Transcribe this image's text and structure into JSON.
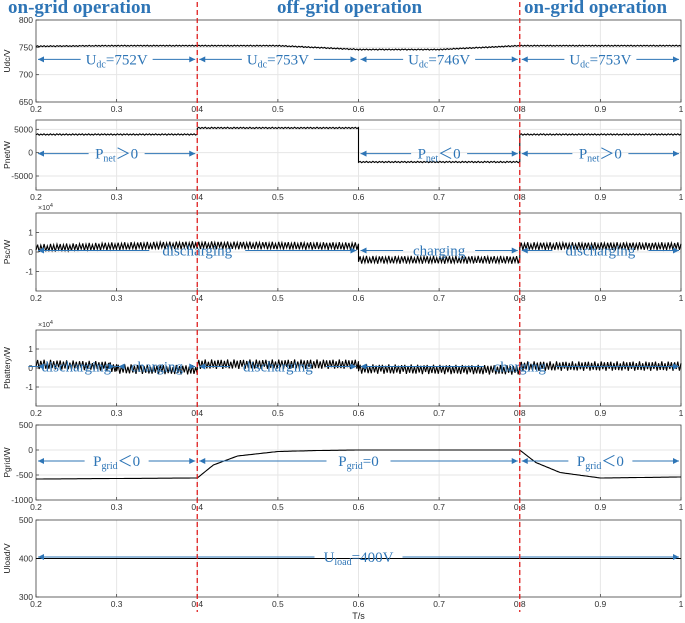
{
  "phases": [
    {
      "label": "on-grid operation",
      "x_range": [
        0.2,
        0.4
      ]
    },
    {
      "label": "off-grid operation",
      "x_range": [
        0.4,
        0.8
      ]
    },
    {
      "label": "on-grid operation",
      "x_range": [
        0.8,
        1.0
      ]
    }
  ],
  "colors": {
    "annotation": "#2e75b6",
    "mode_switch": "#e02020",
    "trace": "#000000",
    "grid": "#e6e6e6"
  },
  "chart_data": [
    {
      "type": "line",
      "ylabel": "Udc/V",
      "xlim": [
        0.2,
        1.0
      ],
      "ylim": [
        650,
        800
      ],
      "xticks": [
        0.2,
        0.3,
        0.4,
        0.5,
        0.6,
        0.7,
        0.8,
        0.9,
        1
      ],
      "yticks": [
        650,
        700,
        750,
        800
      ],
      "grid": true,
      "series": [
        {
          "x": [
            0.2,
            0.3,
            0.4,
            0.5,
            0.6,
            0.7,
            0.8,
            0.9,
            1.0
          ],
          "y": [
            752,
            753,
            753,
            753,
            746,
            746,
            753,
            753,
            753
          ],
          "ripple": 1
        }
      ],
      "annotations": [
        {
          "text": "U",
          "sub": "dc",
          "rest": "=752V",
          "x_range": [
            0.2,
            0.4
          ]
        },
        {
          "text": "U",
          "sub": "dc",
          "rest": "=753V",
          "x_range": [
            0.4,
            0.6
          ]
        },
        {
          "text": "U",
          "sub": "dc",
          "rest": "=746V",
          "x_range": [
            0.6,
            0.8
          ]
        },
        {
          "text": "U",
          "sub": "dc",
          "rest": "=753V",
          "x_range": [
            0.8,
            1.0
          ]
        }
      ]
    },
    {
      "type": "line",
      "ylabel": "Pnet/W",
      "xlim": [
        0.2,
        1.0
      ],
      "ylim": [
        -8000,
        7000
      ],
      "xticks": [
        0.2,
        0.3,
        0.4,
        0.5,
        0.6,
        0.7,
        0.8,
        0.9,
        1
      ],
      "yticks": [
        -5000,
        0,
        5000
      ],
      "grid": true,
      "series": [
        {
          "x": [
            0.2,
            0.4,
            0.4,
            0.6,
            0.6,
            0.8,
            0.8,
            1.0
          ],
          "y": [
            3900,
            3900,
            5300,
            5300,
            -2000,
            -2000,
            3900,
            3900
          ],
          "ripple": 150
        }
      ],
      "annotations": [
        {
          "text": "P",
          "sub": "net",
          "rest": "＞0",
          "x_range": [
            0.2,
            0.4
          ]
        },
        {
          "text": "P",
          "sub": "net",
          "rest": "＜0",
          "x_range": [
            0.6,
            0.8
          ]
        },
        {
          "text": "P",
          "sub": "net",
          "rest": "＞0",
          "x_range": [
            0.8,
            1.0
          ]
        }
      ]
    },
    {
      "type": "line",
      "ylabel": "Psc/W",
      "exponent": "×10",
      "exponent_power": "4",
      "xlim": [
        0.2,
        1.0
      ],
      "ylim": [
        -2,
        2
      ],
      "xticks": [
        0.2,
        0.3,
        0.4,
        0.5,
        0.6,
        0.7,
        0.8,
        0.9,
        1
      ],
      "yticks": [
        -1,
        0,
        1
      ],
      "grid": true,
      "series": [
        {
          "x": [
            0.2,
            0.3,
            0.4,
            0.6,
            0.6,
            0.8,
            0.8,
            1.0
          ],
          "y": [
            0.2,
            0.3,
            0.35,
            0.3,
            -0.4,
            -0.4,
            0.3,
            0.3
          ],
          "ripple": 0.2
        }
      ],
      "annotations": [
        {
          "text": "discharging",
          "x_range": [
            0.2,
            0.6
          ]
        },
        {
          "text": "charging",
          "x_range": [
            0.6,
            0.8
          ]
        },
        {
          "text": "discharging",
          "x_range": [
            0.8,
            1.0
          ]
        }
      ]
    },
    {
      "type": "line",
      "ylabel": "Pbattery/W",
      "exponent": "×10",
      "exponent_power": "4",
      "xlim": [
        0.2,
        1.0
      ],
      "ylim": [
        -2,
        2
      ],
      "xticks": [
        0.2,
        0.3,
        0.4,
        0.5,
        0.6,
        0.7,
        0.8,
        0.9,
        1
      ],
      "yticks": [
        -1,
        0,
        1
      ],
      "grid": true,
      "series": [
        {
          "x": [
            0.2,
            0.29,
            0.3,
            0.4,
            0.4,
            0.6,
            0.6,
            0.8,
            0.8,
            1.0
          ],
          "y": [
            0.2,
            0.1,
            -0.05,
            -0.1,
            0.2,
            0.2,
            -0.05,
            -0.1,
            0.1,
            0.1
          ],
          "ripple": 0.25
        }
      ],
      "annotations": [
        {
          "text": "discharging",
          "x_range": [
            0.2,
            0.3
          ]
        },
        {
          "text": "charging",
          "x_range": [
            0.3,
            0.4
          ]
        },
        {
          "text": "discharging",
          "x_range": [
            0.4,
            0.6
          ]
        },
        {
          "text": "charging",
          "x_range": [
            0.6,
            1.0
          ]
        }
      ]
    },
    {
      "type": "line",
      "ylabel": "Pgrid/W",
      "xlim": [
        0.2,
        1.0
      ],
      "ylim": [
        -1000,
        500
      ],
      "xticks": [
        0.2,
        0.3,
        0.4,
        0.5,
        0.6,
        0.7,
        0.8,
        0.9,
        1
      ],
      "yticks": [
        -1000,
        -500,
        0,
        500
      ],
      "grid": true,
      "series": [
        {
          "x": [
            0.2,
            0.3,
            0.4,
            0.42,
            0.45,
            0.5,
            0.55,
            0.6,
            0.7,
            0.8,
            0.82,
            0.85,
            0.9,
            1.0
          ],
          "y": [
            -580,
            -570,
            -560,
            -300,
            -120,
            -30,
            -10,
            0,
            0,
            0,
            -250,
            -450,
            -560,
            -540
          ],
          "ripple": 0
        }
      ],
      "annotations": [
        {
          "text": "P",
          "sub": "grid",
          "rest": "＜0",
          "x_range": [
            0.2,
            0.4
          ]
        },
        {
          "text": "P",
          "sub": "grid",
          "rest": "=0",
          "x_range": [
            0.4,
            0.8
          ]
        },
        {
          "text": "P",
          "sub": "grid",
          "rest": "＜0",
          "x_range": [
            0.8,
            1.0
          ]
        }
      ]
    },
    {
      "type": "line",
      "ylabel": "Uload/V",
      "xlabel": "T/s",
      "xlim": [
        0.2,
        1.0
      ],
      "ylim": [
        300,
        500
      ],
      "xticks": [
        0.2,
        0.3,
        0.4,
        0.5,
        0.6,
        0.7,
        0.8,
        0.9,
        1
      ],
      "yticks": [
        300,
        400,
        500
      ],
      "grid": true,
      "series": [
        {
          "x": [
            0.2,
            1.0
          ],
          "y": [
            400,
            400
          ],
          "ripple": 0
        }
      ],
      "annotations": [
        {
          "text": "U",
          "sub": "load",
          "rest": "=400V",
          "x_range": [
            0.2,
            1.0
          ]
        }
      ]
    }
  ]
}
